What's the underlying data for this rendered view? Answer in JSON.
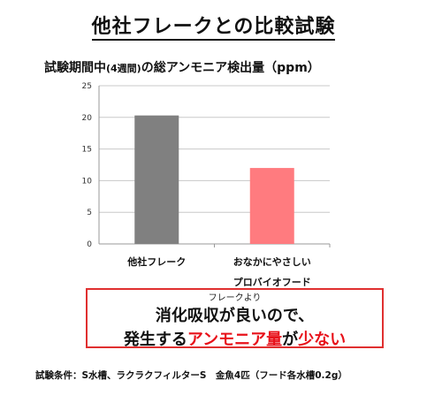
{
  "page": {
    "title": "他社フレークとの比較試験",
    "chart_title_main": "試験期間中",
    "chart_title_paren": "(4週間)",
    "chart_title_rest": "の総アンモニア検出量（ppm）"
  },
  "callout": {
    "note": "フレークより",
    "line1": "消化吸収が良いので、",
    "line2_a": "発生する",
    "line2_b": "アンモニア量",
    "line2_c": "が",
    "line2_d": "少ない",
    "accent": "#e8111a"
  },
  "footnote": "試験条件：S水槽、ラクラクフィルターS　金魚4匹（フード各水槽0.2g）",
  "chart_data": {
    "type": "bar",
    "categories": [
      "他社フレーク",
      "おなかにやさしい\nプロバイオフード"
    ],
    "values": [
      20.3,
      12.0
    ],
    "colors": [
      "#808080",
      "#ff7b7f"
    ],
    "ylim": [
      0,
      25
    ],
    "yticks": [
      0,
      5,
      10,
      15,
      20,
      25
    ],
    "grid": true,
    "xlabel": "",
    "ylabel": ""
  }
}
